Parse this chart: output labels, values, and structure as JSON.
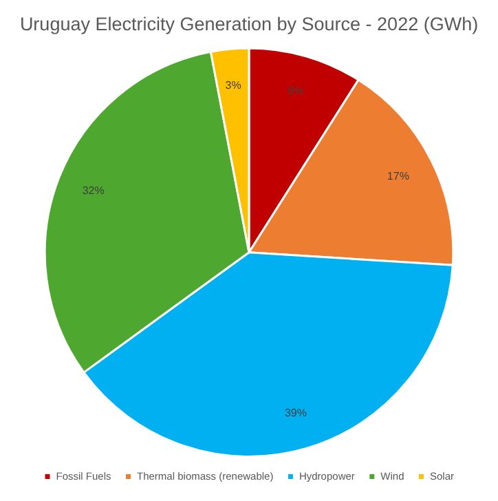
{
  "chart_data": {
    "type": "pie",
    "title": "Uruguay Electricity Generation by Source - 2022 (GWh)",
    "categories": [
      "Fossil Fuels",
      "Thermal biomass (renewable)",
      "Hydropower",
      "Wind",
      "Solar"
    ],
    "values": [
      9,
      17,
      39,
      32,
      3
    ],
    "colors": [
      "#c00000",
      "#ed7d31",
      "#00b0f0",
      "#4ea72e",
      "#ffc000"
    ],
    "value_labels": [
      "9%",
      "17%",
      "39%",
      "32%",
      "3%"
    ],
    "legend": "bottom"
  }
}
